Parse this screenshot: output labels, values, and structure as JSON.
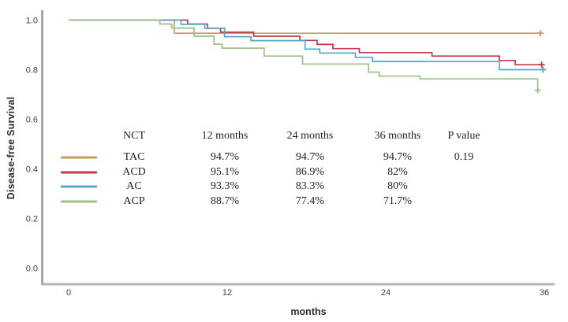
{
  "chart_data": {
    "type": "line",
    "subtype": "kaplan-meier-step",
    "title": "",
    "xlabel": "months",
    "ylabel": "Disease-free Survival",
    "xlim": [
      0,
      36
    ],
    "ylim": [
      0.0,
      1.0
    ],
    "grid": false,
    "legend_position": "inside-center-left-table",
    "censor_marker": "+",
    "x_ticks": [
      {
        "label": "0",
        "value": 0
      },
      {
        "label": "12",
        "value": 12
      },
      {
        "label": "24",
        "value": 24
      },
      {
        "label": "36",
        "value": 36
      }
    ],
    "y_ticks": [
      {
        "label": "1.0",
        "value": 1.0
      },
      {
        "label": "0.8",
        "value": 0.8
      },
      {
        "label": "0.6",
        "value": 0.6
      },
      {
        "label": "0.4",
        "value": 0.4
      },
      {
        "label": "0.2",
        "value": 0.2
      },
      {
        "label": "0.0",
        "value": 0.0
      }
    ],
    "series": [
      {
        "name": "TAC",
        "color": "#c89a5e",
        "steps": [
          [
            0,
            1.0
          ],
          [
            8,
            0.947
          ]
        ],
        "end": 35.7,
        "censor": [
          35.7,
          0.947
        ]
      },
      {
        "name": "ACD",
        "color": "#c23a4a",
        "steps": [
          [
            0,
            1.0
          ],
          [
            9,
            0.984
          ],
          [
            10.5,
            0.967
          ],
          [
            11.5,
            0.951
          ],
          [
            14,
            0.935
          ],
          [
            17.5,
            0.918
          ],
          [
            18.8,
            0.902
          ],
          [
            20,
            0.885
          ],
          [
            22,
            0.869
          ],
          [
            27.5,
            0.855
          ],
          [
            32.6,
            0.837
          ],
          [
            33.8,
            0.82
          ]
        ],
        "end": 35.8,
        "censor": [
          35.8,
          0.82
        ]
      },
      {
        "name": "AC",
        "color": "#55a8c8",
        "steps": [
          [
            0,
            1.0
          ],
          [
            8.5,
            0.983
          ],
          [
            10.3,
            0.967
          ],
          [
            11.8,
            0.933
          ],
          [
            13.8,
            0.917
          ],
          [
            17.9,
            0.883
          ],
          [
            19,
            0.867
          ],
          [
            21.7,
            0.85
          ],
          [
            23,
            0.833
          ],
          [
            32.6,
            0.8
          ]
        ],
        "end": 35.9,
        "censor": [
          35.9,
          0.8
        ]
      },
      {
        "name": "ACP",
        "color": "#9cbf86",
        "steps": [
          [
            0,
            1.0
          ],
          [
            6.9,
            0.984
          ],
          [
            7.8,
            0.968
          ],
          [
            9.5,
            0.935
          ],
          [
            11,
            0.903
          ],
          [
            11.6,
            0.887
          ],
          [
            14.8,
            0.855
          ],
          [
            17.7,
            0.823
          ],
          [
            22.7,
            0.79
          ],
          [
            23.5,
            0.774
          ],
          [
            26.6,
            0.763
          ],
          [
            35.5,
            0.717
          ]
        ],
        "end": 35.7,
        "censor": [
          35.5,
          0.717
        ]
      }
    ],
    "summary_table": {
      "headers": [
        "NCT",
        "12 months",
        "24 months",
        "36 months",
        "P value"
      ],
      "rows": [
        {
          "name": "TAC",
          "values": [
            "94.7%",
            "94.7%",
            "94.7%"
          ],
          "p": "0.19"
        },
        {
          "name": "ACD",
          "values": [
            "95.1%",
            "86.9%",
            "82%"
          ],
          "p": ""
        },
        {
          "name": "AC",
          "values": [
            "93.3%",
            "83.3%",
            "80%"
          ],
          "p": ""
        },
        {
          "name": "ACP",
          "values": [
            "88.7%",
            "77.4%",
            "71.7%"
          ],
          "p": ""
        }
      ]
    },
    "colors": {
      "axis_y": "#979797",
      "axis_x": "#b5b5b5",
      "tick_text": "#3f3f3f",
      "legend_text": "#222222",
      "background": "#ffffff"
    }
  }
}
